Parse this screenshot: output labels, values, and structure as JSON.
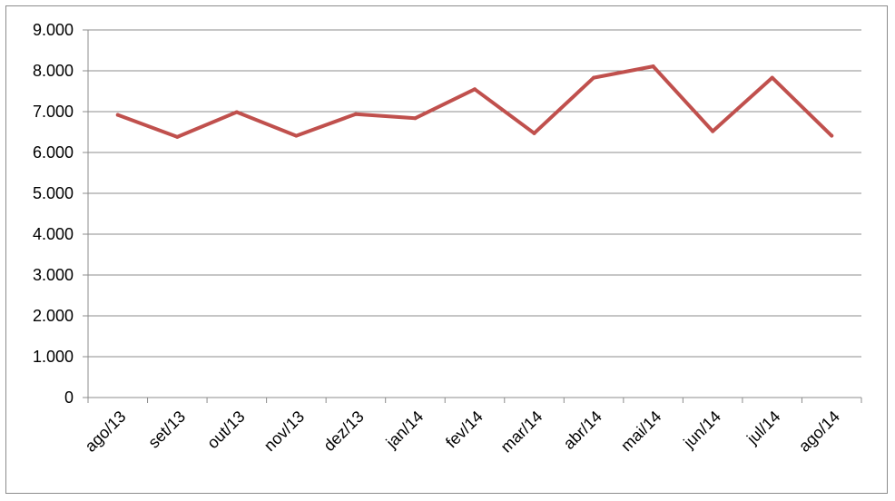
{
  "chart_data": {
    "type": "line",
    "title": "",
    "xlabel": "",
    "ylabel": "",
    "categories": [
      "ago/13",
      "set/13",
      "out/13",
      "nov/13",
      "dez/13",
      "jan/14",
      "fev/14",
      "mar/14",
      "abr/14",
      "mai/14",
      "jun/14",
      "jul/14",
      "ago/14"
    ],
    "series": [
      {
        "values": [
          6920,
          6380,
          6990,
          6410,
          6940,
          6840,
          7550,
          6470,
          7830,
          8110,
          6520,
          7830,
          6410
        ]
      }
    ],
    "ylim": [
      0,
      9000
    ],
    "yticks": [
      0,
      1000,
      2000,
      3000,
      4000,
      5000,
      6000,
      7000,
      8000,
      9000
    ],
    "ytick_labels": [
      "0",
      "1.000",
      "2.000",
      "3.000",
      "4.000",
      "5.000",
      "6.000",
      "7.000",
      "8.000",
      "9.000"
    ],
    "grid": true,
    "legend": "none",
    "colors": {
      "line": "#c0504d",
      "grid": "#8c8c8c",
      "axis": "#8c8c8c"
    }
  }
}
